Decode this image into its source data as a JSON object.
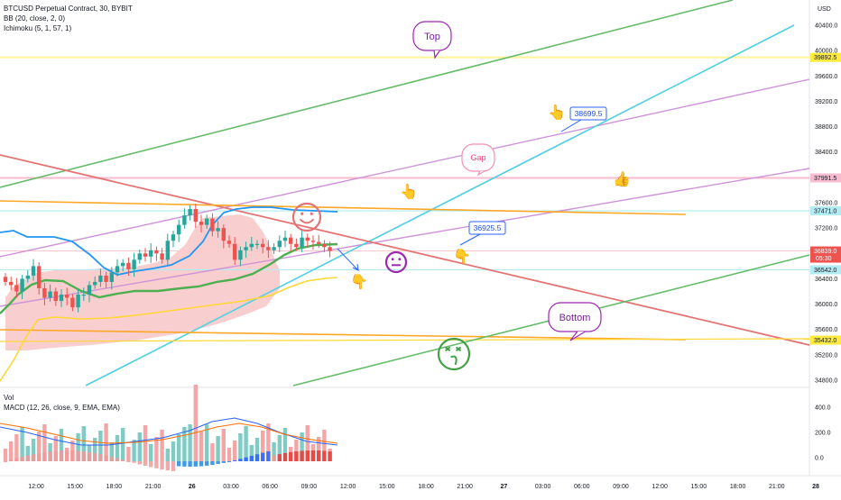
{
  "header": {
    "title": "BTCUSD Perpetual Contract, 30, BYBIT",
    "indicators": [
      "BB (20, close, 2, 0)",
      "Ichimoku (5, 1, 57, 1)"
    ]
  },
  "lower_pane": {
    "vol_label": "Vol",
    "macd_label": "MACD (12, 26, close, 9, EMA, EMA)"
  },
  "colors": {
    "up": "#26a69a",
    "down": "#ef5350",
    "bb": "#2196f3",
    "mid": "#4caf50",
    "cloud": "#f8c6c6",
    "green_line": "#66bb6a",
    "cyan_line": "#4dd0e1",
    "violet_line": "#ce93d8",
    "red_line": "#e57373",
    "orange_line": "#ffa726",
    "yellow_line": "#fdd835",
    "annotation_blue": "#2962ff",
    "purple": "#9c27b0"
  },
  "icons": [
    "smiley-icon",
    "neutral-face-icon",
    "dizzy-face-icon",
    "hand-pointer-icon"
  ],
  "chart_data": {
    "type": "candlestick",
    "currency": "USD",
    "price_ticks": [
      "40400.0",
      "40000.0",
      "39600.0",
      "39200.0",
      "38800.0",
      "38400.0",
      "37600.0",
      "37200.0",
      "36400.0",
      "36000.0",
      "35600.0",
      "35200.0",
      "34800.0"
    ],
    "price_tags": [
      {
        "label": "39892.5",
        "kind": "yellow"
      },
      {
        "label": "37991.5",
        "kind": "rose"
      },
      {
        "label": "37471.0",
        "kind": "cyan"
      },
      {
        "label": "36839.0",
        "kind": "red",
        "sub": "05:30"
      },
      {
        "label": "36542.0",
        "kind": "cyan"
      },
      {
        "label": "35432.0",
        "kind": "yellow"
      }
    ],
    "time_ticks": [
      "12:00",
      "15:00",
      "18:00",
      "21:00",
      "26",
      "03:00",
      "06:00",
      "09:00",
      "12:00",
      "15:00",
      "18:00",
      "21:00",
      "27",
      "03:00",
      "06:00",
      "09:00",
      "12:00",
      "15:00",
      "18:00",
      "21:00",
      "28"
    ],
    "macd_ticks": [
      "400.0",
      "200.0",
      "0.0"
    ],
    "annotations": [
      "Top",
      "Gap",
      "Bottom",
      "38699.5",
      "36925.5"
    ],
    "closes": [
      36350,
      36300,
      36200,
      36400,
      36450,
      36600,
      36250,
      36100,
      36200,
      36050,
      36150,
      36100,
      35950,
      36150,
      36150,
      36300,
      36350,
      36450,
      36350,
      36500,
      36600,
      36650,
      36550,
      36700,
      36800,
      36750,
      36850,
      36800,
      36700,
      37000,
      37100,
      37250,
      37400,
      37500,
      37300,
      37250,
      37350,
      37150,
      37200,
      37000,
      36950,
      36700,
      36850,
      36900,
      36950,
      36950,
      36900,
      36850,
      36900,
      37000,
      37050,
      36950,
      36900,
      37050,
      37000,
      36980,
      36950,
      36900,
      36839
    ]
  }
}
